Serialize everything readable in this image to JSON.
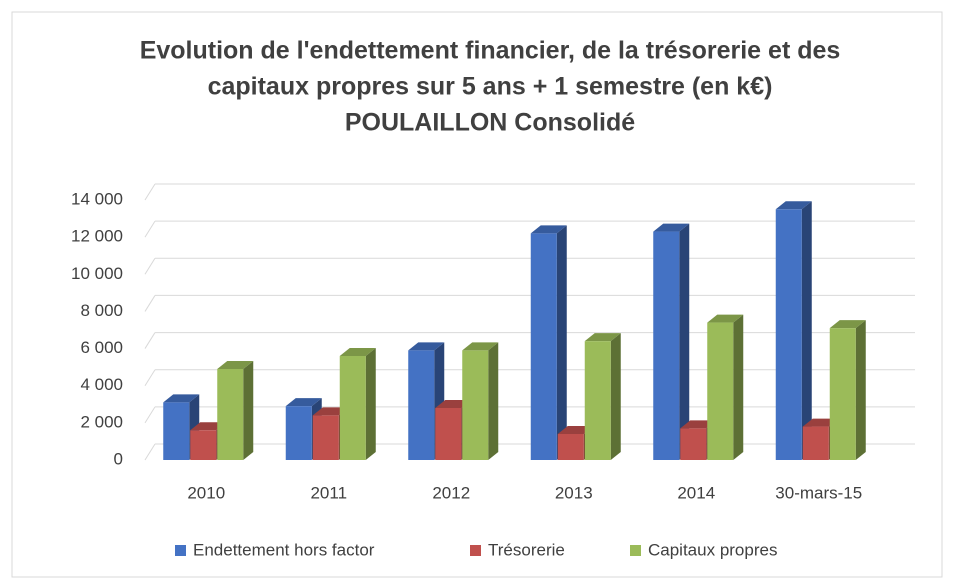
{
  "chart_data": {
    "type": "bar3d",
    "title": [
      "Evolution de l'endettement financier, de la trésorerie et des",
      "capitaux propres sur 5 ans + 1 semestre (en k€)",
      "POULAILLON Consolidé"
    ],
    "categories": [
      "2010",
      "2011",
      "2012",
      "2013",
      "2014",
      "30-mars-15"
    ],
    "series": [
      {
        "name": "Endettement hors factor",
        "color": "#4472c4",
        "values": [
          3100,
          2900,
          5900,
          12200,
          12300,
          13500
        ]
      },
      {
        "name": "Trésorerie",
        "color": "#c0504d",
        "values": [
          1600,
          2400,
          2800,
          1400,
          1700,
          1800
        ]
      },
      {
        "name": "Capitaux propres",
        "color": "#9bbb59",
        "values": [
          4900,
          5600,
          5900,
          6400,
          7400,
          7100
        ]
      }
    ],
    "ylim": [
      0,
      14000
    ],
    "yticks": [
      0,
      {
        "value": 2000,
        "label": "2 000"
      },
      {
        "value": 4000,
        "label": "4 000"
      },
      {
        "value": 6000,
        "label": "6 000"
      },
      {
        "value": 8000,
        "label": "8 000"
      },
      {
        "value": 10000,
        "label": "10 000"
      },
      {
        "value": 12000,
        "label": "12 000"
      },
      {
        "value": 14000,
        "label": "14 000"
      }
    ],
    "grid": true,
    "legend": "bottom"
  }
}
